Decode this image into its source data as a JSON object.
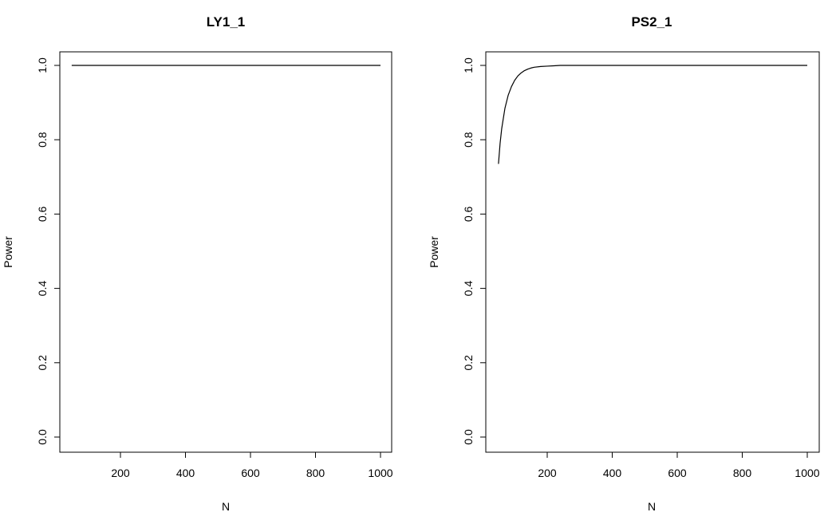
{
  "chart_data": [
    {
      "type": "line",
      "title": "LY1_1",
      "xlabel": "N",
      "ylabel": "Power",
      "xlim": [
        50,
        1000
      ],
      "ylim": [
        0.0,
        1.0
      ],
      "xticks": [
        "200",
        "400",
        "600",
        "800",
        "1000"
      ],
      "yticks": [
        "0.0",
        "0.2",
        "0.4",
        "0.6",
        "0.8",
        "1.0"
      ],
      "grid": false,
      "series": [
        {
          "x": [
            50,
            100,
            200,
            300,
            400,
            500,
            600,
            700,
            800,
            900,
            1000
          ],
          "y": [
            1.0,
            1.0,
            1.0,
            1.0,
            1.0,
            1.0,
            1.0,
            1.0,
            1.0,
            1.0,
            1.0
          ]
        }
      ]
    },
    {
      "type": "line",
      "title": "PS2_1",
      "xlabel": "N",
      "ylabel": "Power",
      "xlim": [
        50,
        1000
      ],
      "ylim": [
        0.0,
        1.0
      ],
      "xticks": [
        "200",
        "400",
        "600",
        "800",
        "1000"
      ],
      "yticks": [
        "0.0",
        "0.2",
        "0.4",
        "0.6",
        "0.8",
        "1.0"
      ],
      "grid": false,
      "series": [
        {
          "x": [
            50,
            55,
            60,
            70,
            80,
            90,
            100,
            110,
            120,
            130,
            140,
            150,
            160,
            180,
            200,
            220,
            240,
            300,
            400,
            500,
            600,
            700,
            800,
            900,
            1000
          ],
          "y": [
            0.735,
            0.79,
            0.83,
            0.885,
            0.92,
            0.943,
            0.96,
            0.972,
            0.98,
            0.986,
            0.99,
            0.993,
            0.995,
            0.997,
            0.998,
            0.999,
            1.0,
            1.0,
            1.0,
            1.0,
            1.0,
            1.0,
            1.0,
            1.0,
            1.0
          ]
        }
      ]
    }
  ]
}
